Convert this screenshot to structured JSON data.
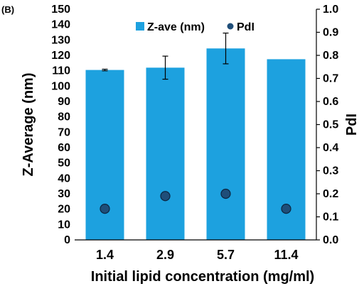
{
  "panel_label": "(B)",
  "chart_data": {
    "type": "bar",
    "categories": [
      "1.4",
      "2.9",
      "5.7",
      "11.4"
    ],
    "xlabel": "Initial lipid concentration (mg/ml)",
    "ylabel": "Z-Average  (nm)",
    "y2label": "PdI",
    "ylim": [
      0,
      150
    ],
    "y2lim": [
      0,
      1.0
    ],
    "yticks": [
      "0",
      "10",
      "20",
      "30",
      "40",
      "50",
      "60",
      "70",
      "80",
      "90",
      "100",
      "110",
      "120",
      "130",
      "140",
      "150"
    ],
    "y2ticks": [
      "0.0",
      "0.1",
      "0.2",
      "0.3",
      "0.4",
      "0.5",
      "0.6",
      "0.7",
      "0.8",
      "0.9",
      "1.0"
    ],
    "legend_position": "top",
    "grid": false,
    "series": [
      {
        "name": "Z-ave (nm)",
        "kind": "bar",
        "axis": "left",
        "color": "#1da1df",
        "values": [
          110.5,
          112,
          124.5,
          117.5
        ],
        "errors": [
          0.5,
          7.5,
          10,
          0
        ]
      },
      {
        "name": "PdI",
        "kind": "scatter",
        "axis": "right",
        "color": "#1f4e79",
        "values": [
          0.135,
          0.19,
          0.2,
          0.135
        ],
        "errors": [
          0,
          0.015,
          0,
          0
        ]
      }
    ]
  }
}
